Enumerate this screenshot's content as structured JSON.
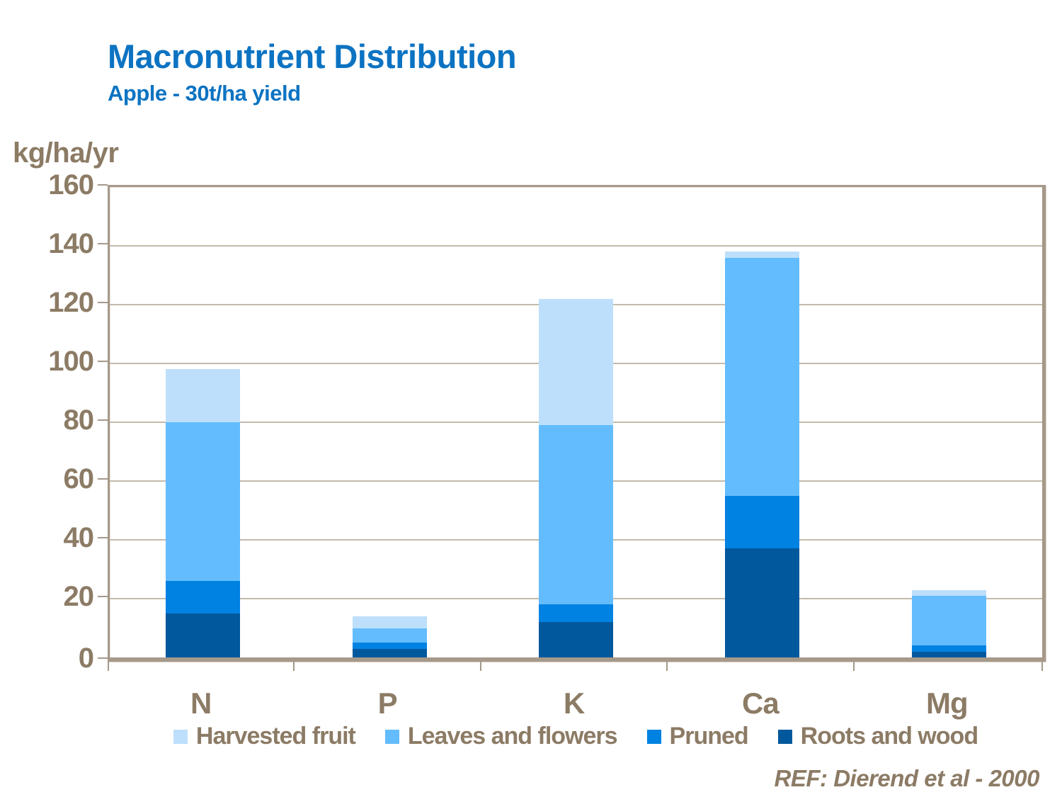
{
  "colors": {
    "title_blue": "#0C73C2",
    "axis_text_brown": "#8C7B65",
    "frame_brown": "#A6998A",
    "gridline_brown": "#C4BAAC",
    "background": "#FFFFFF"
  },
  "chart_data": {
    "type": "bar",
    "stacked": true,
    "title": "Macronutrient Distribution",
    "subtitle": "Apple - 30t/ha yield",
    "ylabel": "kg/ha/yr",
    "xlabel": "",
    "ylim": [
      0,
      160
    ],
    "ytick_step": 20,
    "grid": true,
    "legend_position": "bottom",
    "annotation": "REF: Dierend et al - 2000",
    "categories": [
      "N",
      "P",
      "K",
      "Ca",
      "Mg"
    ],
    "series": [
      {
        "name": "Harvested fruit",
        "color": "#BDDFFB",
        "values": [
          18,
          4,
          43,
          2,
          2
        ]
      },
      {
        "name": "Leaves and flowers",
        "color": "#63BCFD",
        "values": [
          54,
          5,
          61,
          81,
          17
        ]
      },
      {
        "name": "Pruned",
        "color": "#0082E2",
        "values": [
          11,
          2,
          6,
          18,
          2
        ]
      },
      {
        "name": "Roots and wood",
        "color": "#02589C",
        "values": [
          15,
          3,
          12,
          37,
          2
        ]
      }
    ],
    "totals": [
      98,
      14,
      122,
      138,
      23
    ]
  }
}
